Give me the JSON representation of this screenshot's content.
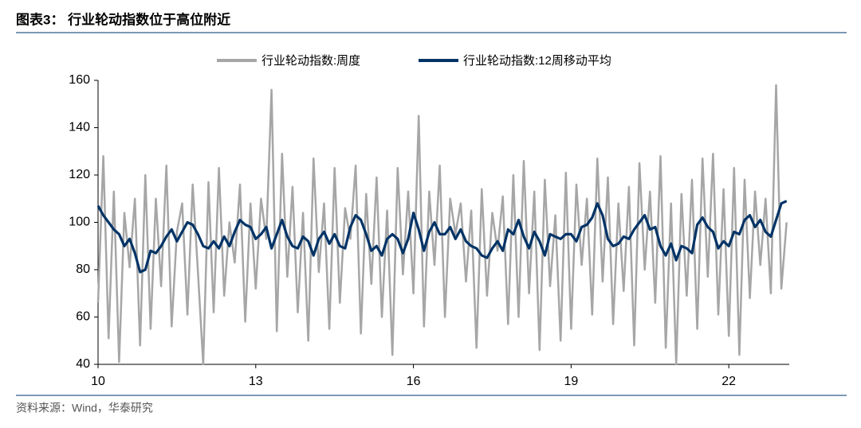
{
  "title": "图表3： 行业轮动指数位于高位附近",
  "source": "资料来源：Wind，华泰研究",
  "chart_data": {
    "type": "line",
    "x": [
      10.0,
      10.1,
      10.2,
      10.3,
      10.4,
      10.5,
      10.6,
      10.7,
      10.8,
      10.9,
      11.0,
      11.1,
      11.2,
      11.3,
      11.4,
      11.5,
      11.6,
      11.7,
      11.8,
      11.9,
      12.0,
      12.1,
      12.2,
      12.3,
      12.4,
      12.5,
      12.6,
      12.7,
      12.8,
      12.9,
      13.0,
      13.1,
      13.2,
      13.3,
      13.4,
      13.5,
      13.6,
      13.7,
      13.8,
      13.9,
      14.0,
      14.1,
      14.2,
      14.3,
      14.4,
      14.5,
      14.6,
      14.7,
      14.8,
      14.9,
      15.0,
      15.1,
      15.2,
      15.3,
      15.4,
      15.5,
      15.6,
      15.7,
      15.8,
      15.9,
      16.0,
      16.1,
      16.2,
      16.3,
      16.4,
      16.5,
      16.6,
      16.7,
      16.8,
      16.9,
      17.0,
      17.1,
      17.2,
      17.3,
      17.4,
      17.5,
      17.6,
      17.7,
      17.8,
      17.9,
      18.0,
      18.1,
      18.2,
      18.3,
      18.4,
      18.5,
      18.6,
      18.7,
      18.8,
      18.9,
      19.0,
      19.1,
      19.2,
      19.3,
      19.4,
      19.5,
      19.6,
      19.7,
      19.8,
      19.9,
      20.0,
      20.1,
      20.2,
      20.3,
      20.4,
      20.5,
      20.6,
      20.7,
      20.8,
      20.9,
      21.0,
      21.1,
      21.2,
      21.3,
      21.4,
      21.5,
      21.6,
      21.7,
      21.8,
      21.9,
      22.0,
      22.1,
      22.2,
      22.3,
      22.4,
      22.5,
      22.6,
      22.7,
      22.8,
      22.9,
      23.0,
      23.1
    ],
    "series": [
      {
        "name": "行业轮动指数:周度",
        "color": "#a6a6a6",
        "values": [
          66,
          128,
          51,
          113,
          41,
          104,
          81,
          110,
          48,
          120,
          55,
          110,
          73,
          124,
          56,
          96,
          108,
          61,
          116,
          79,
          40,
          117,
          62,
          123,
          69,
          100,
          83,
          116,
          58,
          108,
          72,
          110,
          93,
          156,
          54,
          129,
          77,
          115,
          62,
          104,
          50,
          127,
          79,
          108,
          55,
          123,
          66,
          106,
          93,
          124,
          53,
          112,
          74,
          119,
          60,
          105,
          44,
          123,
          78,
          113,
          70,
          145,
          56,
          113,
          82,
          124,
          60,
          110,
          95,
          108,
          75,
          105,
          47,
          114,
          69,
          104,
          88,
          111,
          57,
          120,
          60,
          126,
          70,
          113,
          46,
          118,
          73,
          103,
          50,
          121,
          55,
          116,
          82,
          110,
          61,
          127,
          75,
          119,
          57,
          108,
          71,
          115,
          48,
          125,
          80,
          113,
          66,
          128,
          47,
          108,
          40,
          112,
          69,
          118,
          55,
          127,
          77,
          129,
          61,
          114,
          52,
          123,
          44,
          118,
          68,
          113,
          82,
          110,
          70,
          158,
          72,
          100
        ]
      },
      {
        "name": "行业轮动指数:12周移动平均",
        "color": "#003366",
        "values": [
          107,
          103,
          100,
          97,
          95,
          90,
          93,
          87,
          79,
          80,
          88,
          87,
          90,
          94,
          97,
          92,
          96,
          100,
          99,
          95,
          90,
          89,
          92,
          89,
          94,
          90,
          96,
          101,
          99,
          98,
          93,
          95,
          98,
          89,
          95,
          101,
          94,
          90,
          89,
          94,
          92,
          86,
          93,
          96,
          91,
          95,
          90,
          89,
          98,
          103,
          101,
          95,
          88,
          90,
          86,
          93,
          95,
          93,
          87,
          93,
          104,
          97,
          88,
          96,
          100,
          95,
          95,
          98,
          93,
          97,
          92,
          90,
          89,
          86,
          85,
          89,
          92,
          88,
          97,
          95,
          101,
          94,
          89,
          96,
          92,
          86,
          95,
          94,
          93,
          95,
          95,
          92,
          98,
          99,
          102,
          108,
          103,
          93,
          90,
          91,
          94,
          93,
          97,
          100,
          103,
          97,
          98,
          90,
          86,
          91,
          84,
          90,
          89,
          87,
          99,
          102,
          98,
          96,
          89,
          92,
          90,
          96,
          95,
          101,
          103,
          98,
          101,
          96,
          94,
          101,
          108,
          109
        ]
      }
    ],
    "xlim": [
      10,
      23.15
    ],
    "xticks": [
      10,
      13,
      16,
      19,
      22
    ],
    "ylim": [
      40,
      160
    ],
    "yticks": [
      40,
      60,
      80,
      100,
      120,
      140,
      160
    ],
    "legend": "top"
  }
}
